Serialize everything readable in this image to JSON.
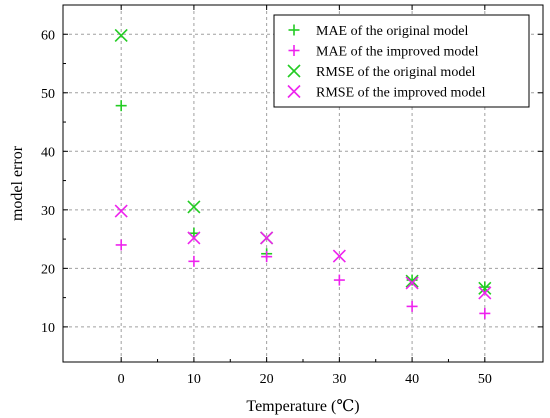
{
  "chart_data": {
    "type": "scatter",
    "xlabel": "Temperature (℃)",
    "ylabel": "model error",
    "xlim": [
      -8,
      58
    ],
    "ylim": [
      4,
      65
    ],
    "xticks": [
      0,
      10,
      20,
      30,
      40,
      50
    ],
    "yticks": [
      10,
      20,
      30,
      40,
      50,
      60
    ],
    "grid": true,
    "legend_position": "top-right",
    "series": [
      {
        "name": "MAE of the original model",
        "marker": "plus",
        "color": "#22cc22",
        "x": [
          0,
          10,
          20,
          40,
          50
        ],
        "y": [
          47.8,
          26.0,
          22.5,
          18.0,
          16.8
        ]
      },
      {
        "name": "MAE of the improved model",
        "marker": "plus",
        "color": "#ee22ee",
        "x": [
          0,
          10,
          20,
          30,
          40,
          50
        ],
        "y": [
          24.0,
          21.2,
          22.0,
          18.0,
          13.5,
          12.3
        ]
      },
      {
        "name": "RMSE of the original model",
        "marker": "cross",
        "color": "#22cc22",
        "x": [
          0,
          10,
          20,
          40,
          50
        ],
        "y": [
          59.8,
          30.5,
          25.2,
          17.8,
          16.6
        ]
      },
      {
        "name": "RMSE of the improved model",
        "marker": "cross",
        "color": "#ee22ee",
        "x": [
          0,
          10,
          20,
          30,
          40,
          50
        ],
        "y": [
          29.8,
          25.2,
          25.2,
          22.1,
          17.5,
          15.8
        ]
      }
    ]
  }
}
